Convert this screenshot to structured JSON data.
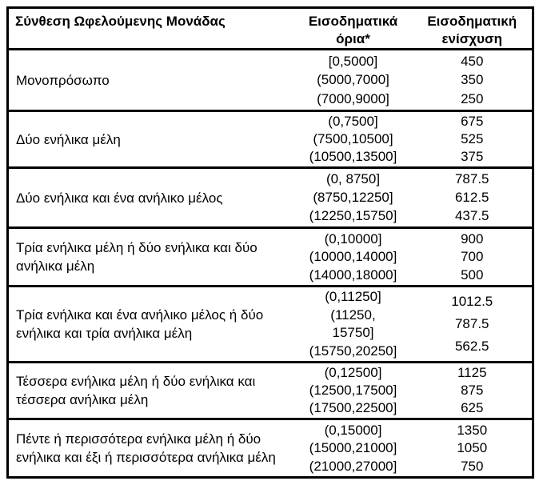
{
  "table": {
    "header": {
      "composition": "Σύνθεση Ωφελούμενης Μονάδας",
      "limits_line1": "Εισοδηματικά",
      "limits_line2": "όρια*",
      "support_line1": "Εισοδηματική",
      "support_line2": "ενίσχυση"
    },
    "rows": [
      {
        "comp_lines": [
          "Μονοπρόσωπο"
        ],
        "limits": [
          "[0,5000]",
          "(5000,7000]",
          "(7000,9000]"
        ],
        "amounts": [
          "450",
          "350",
          "250"
        ]
      },
      {
        "comp_lines": [
          "Δύο ενήλικα μέλη"
        ],
        "limits": [
          "(0,7500]",
          "(7500,10500]",
          "(10500,13500]"
        ],
        "amounts": [
          "675",
          "525",
          "375"
        ]
      },
      {
        "comp_lines": [
          "Δύο ενήλικα και ένα ανήλικο μέλος"
        ],
        "limits": [
          "(0, 8750]",
          "(8750,12250]",
          "(12250,15750]"
        ],
        "amounts": [
          "787.5",
          "612.5",
          "437.5"
        ]
      },
      {
        "comp_lines": [
          "Τρία ενήλικα μέλη ή δύο ενήλικα και δύο",
          "ανήλικα μέλη"
        ],
        "limits": [
          "(0,10000]",
          "(10000,14000]",
          "(14000,18000]"
        ],
        "amounts": [
          "900",
          "700",
          "500"
        ]
      },
      {
        "comp_lines": [
          "Τρία ενήλικα και ένα ανήλικο μέλος ή δύο",
          "ενήλικα και τρία ανήλικα μέλη"
        ],
        "limits": [
          "(0,11250]",
          "(11250,",
          "15750]",
          "(15750,20250]"
        ],
        "amounts": [
          "1012.5",
          "787.5",
          "562.5"
        ]
      },
      {
        "comp_lines": [
          "Τέσσερα ενήλικα μέλη ή δύο ενήλικα και",
          "τέσσερα ανήλικα μέλη"
        ],
        "limits": [
          "(0,12500]",
          "(12500,17500]",
          "(17500,22500]"
        ],
        "amounts": [
          "1125",
          "875",
          "625"
        ]
      },
      {
        "comp_lines": [
          "Πέντε ή περισσότερα ενήλικα μέλη ή δύο",
          "ενήλικα και έξι ή περισσότερα ανήλικα μέλη"
        ],
        "limits": [
          "(0,15000]",
          "(15000,21000]",
          "(21000,27000]"
        ],
        "amounts": [
          "1350",
          "1050",
          "750"
        ]
      }
    ]
  }
}
